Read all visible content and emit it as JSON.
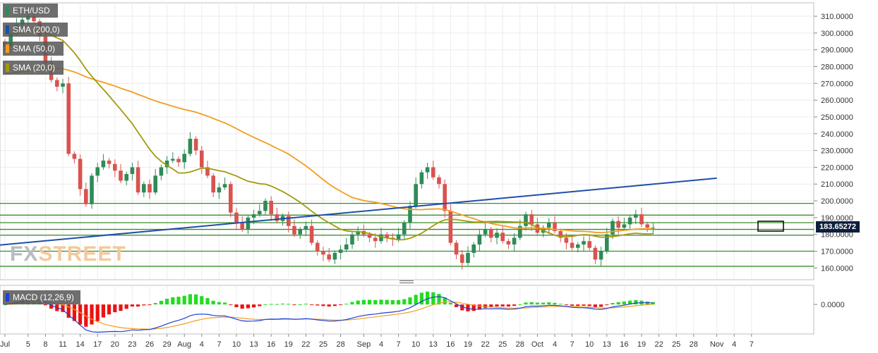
{
  "legend": {
    "symbol": "ETH/USD",
    "sma200": "SMA (200,0)",
    "sma50": "SMA (50,0)",
    "sma20": "SMA (20,0)",
    "macd": "MACD (12,26,9)"
  },
  "watermark": {
    "part1": "FX",
    "part2": "STREET"
  },
  "current_price": "183.65272",
  "colors": {
    "up": "#2e8b57",
    "down": "#d9534f",
    "sma200": "#1f4fa8",
    "sma50": "#f39c1f",
    "sma20": "#a39a0a",
    "support_resistance": "#3a8c2e",
    "macd_line": "#1f3fd8",
    "signal_line": "#f39c1f",
    "hist_pos": "#22dd22",
    "hist_neg": "#ee1111",
    "price_tag": "#0d1f3d"
  },
  "chart_data": {
    "type": "candlestick",
    "y_ticks": [
      "310.0000",
      "300.0000",
      "290.0000",
      "280.0000",
      "270.0000",
      "260.0000",
      "250.0000",
      "240.0000",
      "230.0000",
      "220.0000",
      "210.0000",
      "200.0000",
      "190.0000",
      "180.0000",
      "170.0000",
      "160.0000"
    ],
    "ylim": [
      153,
      318
    ],
    "macd_tick": "0.0000",
    "x_ticks": [
      {
        "label": "Jul",
        "day": 0
      },
      {
        "label": "5",
        "day": 4
      },
      {
        "label": "8",
        "day": 7
      },
      {
        "label": "11",
        "day": 10
      },
      {
        "label": "14",
        "day": 13
      },
      {
        "label": "17",
        "day": 16
      },
      {
        "label": "20",
        "day": 19
      },
      {
        "label": "23",
        "day": 22
      },
      {
        "label": "26",
        "day": 25
      },
      {
        "label": "29",
        "day": 28
      },
      {
        "label": "Aug",
        "day": 31
      },
      {
        "label": "4",
        "day": 34
      },
      {
        "label": "7",
        "day": 37
      },
      {
        "label": "10",
        "day": 40
      },
      {
        "label": "13",
        "day": 43
      },
      {
        "label": "16",
        "day": 46
      },
      {
        "label": "19",
        "day": 49
      },
      {
        "label": "22",
        "day": 52
      },
      {
        "label": "25",
        "day": 55
      },
      {
        "label": "28",
        "day": 58
      },
      {
        "label": "Sep",
        "day": 62
      },
      {
        "label": "4",
        "day": 65
      },
      {
        "label": "7",
        "day": 68
      },
      {
        "label": "10",
        "day": 71
      },
      {
        "label": "13",
        "day": 74
      },
      {
        "label": "16",
        "day": 77
      },
      {
        "label": "19",
        "day": 80
      },
      {
        "label": "22",
        "day": 83
      },
      {
        "label": "25",
        "day": 86
      },
      {
        "label": "28",
        "day": 89
      },
      {
        "label": "Oct",
        "day": 92
      },
      {
        "label": "4",
        "day": 95
      },
      {
        "label": "7",
        "day": 98
      },
      {
        "label": "10",
        "day": 101
      },
      {
        "label": "13",
        "day": 104
      },
      {
        "label": "16",
        "day": 107
      },
      {
        "label": "19",
        "day": 110
      },
      {
        "label": "22",
        "day": 113
      },
      {
        "label": "25",
        "day": 116
      },
      {
        "label": "28",
        "day": 119
      },
      {
        "label": "Nov",
        "day": 123
      },
      {
        "label": "4",
        "day": 126
      },
      {
        "label": "7",
        "day": 129
      }
    ],
    "closes": [
      292,
      300,
      305,
      308,
      310,
      307,
      298,
      282,
      272,
      268,
      270,
      228,
      225,
      207,
      198,
      215,
      220,
      224,
      222,
      218,
      212,
      216,
      220,
      205,
      210,
      205,
      215,
      220,
      224,
      225,
      223,
      228,
      237,
      230,
      220,
      215,
      205,
      208,
      210,
      193,
      187,
      183,
      190,
      192,
      194,
      200,
      192,
      188,
      191,
      185,
      180,
      183,
      185,
      175,
      170,
      168,
      165,
      169,
      171,
      174,
      180,
      182,
      180,
      178,
      176,
      180,
      178,
      177,
      180,
      187,
      197,
      210,
      217,
      220,
      214,
      210,
      194,
      175,
      168,
      163,
      169,
      174,
      180,
      183,
      178,
      181,
      176,
      174,
      178,
      185,
      192,
      186,
      181,
      184,
      187,
      182,
      178,
      175,
      172,
      174,
      176,
      172,
      165,
      170,
      180,
      188,
      184,
      186,
      190,
      192,
      186,
      184,
      184
    ],
    "hlines": [
      198.5,
      191.5,
      187.0,
      183.0,
      179.5,
      170.0,
      161.0
    ],
    "sma200": {
      "start_day": -6,
      "start_value": 172,
      "end_day": 123,
      "end_value": 213.5
    },
    "macd": {
      "axis_min": -0.85,
      "axis_max": 0.55
    }
  }
}
